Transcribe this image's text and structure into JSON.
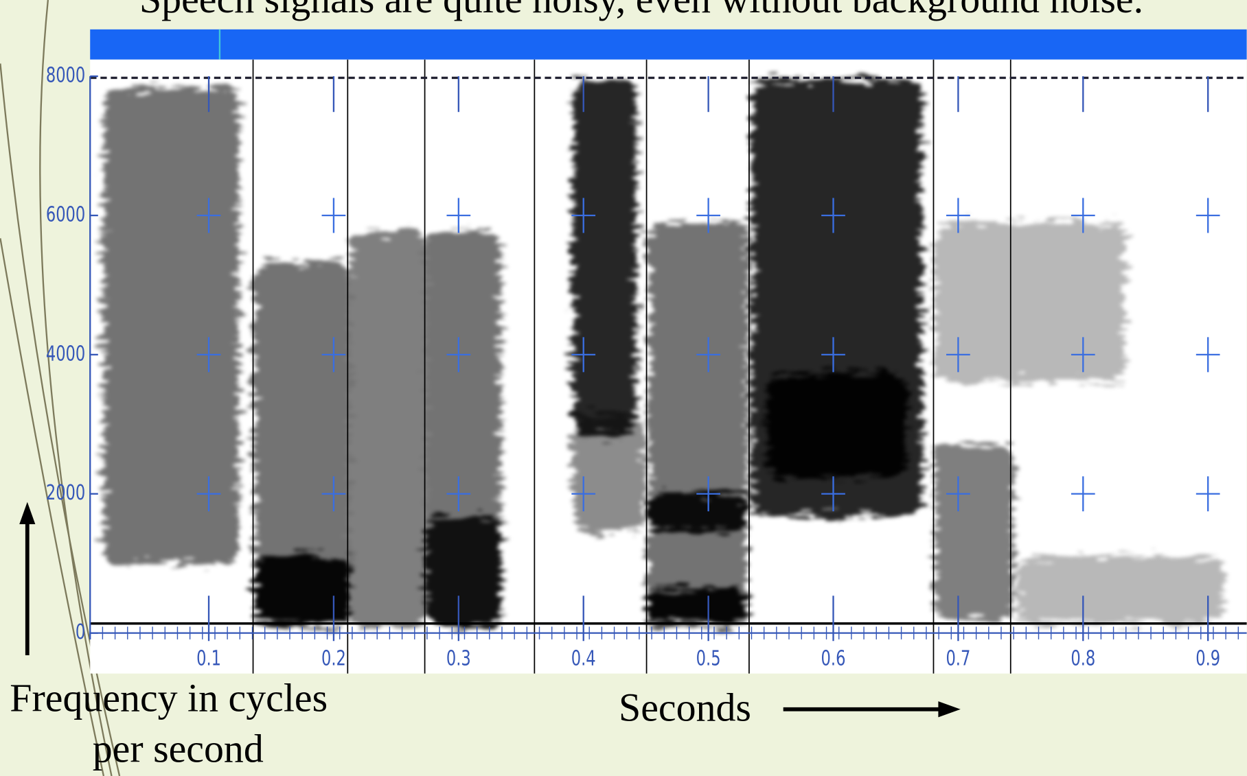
{
  "chart_data": {
    "type": "spectrogram",
    "title": "Speech signals are quite noisy, even without background noise.",
    "ylabel": [
      "Frequency in cycles",
      "per second"
    ],
    "xlabel": "Seconds",
    "xlim": [
      0.005,
      0.931
    ],
    "ylim": [
      0,
      8000
    ],
    "xticks": [
      0.1,
      0.2,
      0.3,
      0.4,
      0.5,
      0.6,
      0.7,
      0.8,
      0.9
    ],
    "yticks": [
      0,
      2000,
      4000,
      6000,
      8000
    ]
  }
}
